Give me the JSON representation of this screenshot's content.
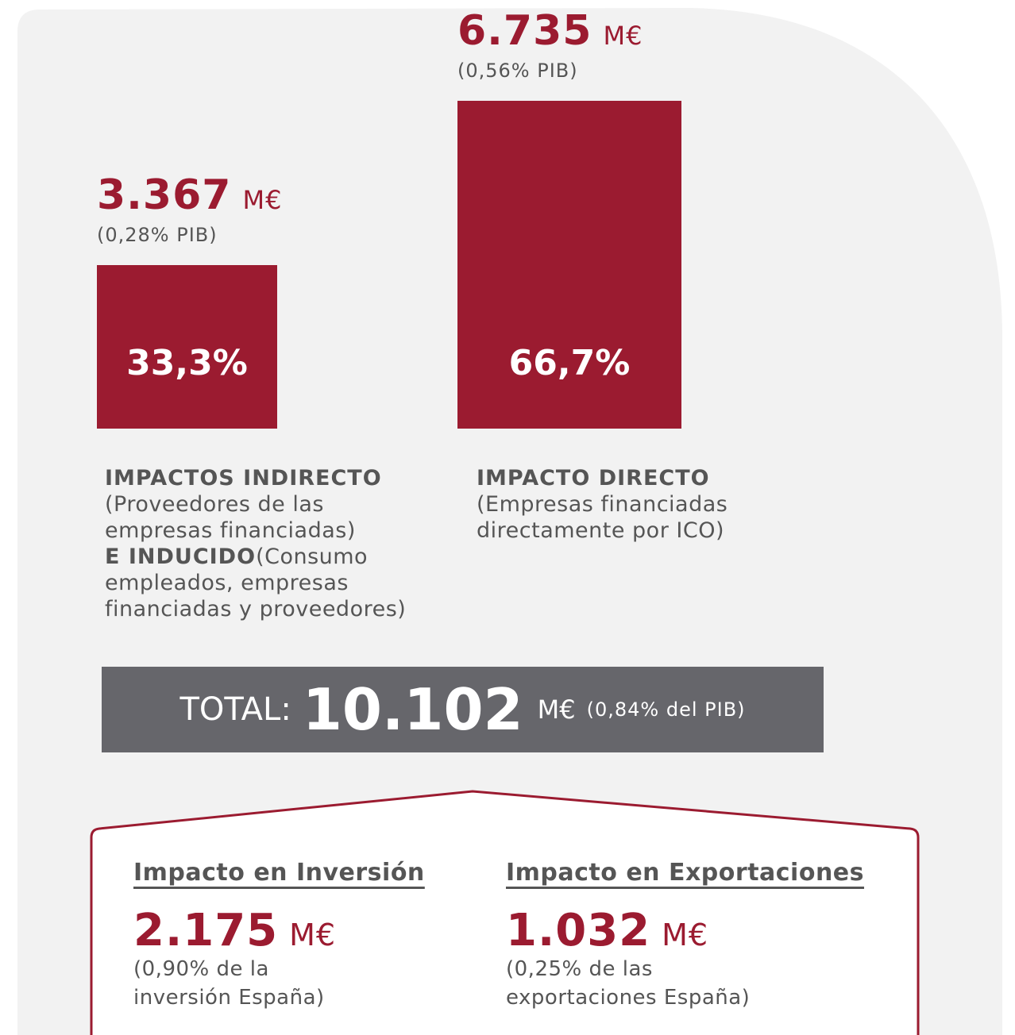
{
  "bars": [
    {
      "value": 3367,
      "value_label": "3.367",
      "unit": "M€",
      "pib": "(0,28% PIB)",
      "share": "33,3%",
      "label": [
        {
          "text": "IMPACTOS INDIRECTO",
          "bold": true
        },
        {
          "text": "(Proveedores de las empresas financiadas)",
          "bold": false
        },
        {
          "text": "E INDUCIDO",
          "bold": true
        },
        {
          "text": "(Consumo empleados, empresas financiadas y proveedores)",
          "bold": false
        }
      ]
    },
    {
      "value": 6735,
      "value_label": "6.735",
      "unit": "M€",
      "pib": "(0,56% PIB)",
      "share": "66,7%",
      "label": [
        {
          "text": "IMPACTO DIRECTO",
          "bold": true
        },
        {
          "text": "(Empresas financiadas directamente por ICO)",
          "bold": false
        }
      ]
    }
  ],
  "total": {
    "prefix": "TOTAL:",
    "value": "10.102",
    "unit": "M€",
    "note": "(0,84% del PIB)"
  },
  "impacts": [
    {
      "title": "Impacto en Inversión",
      "value": "2.175",
      "unit": "M€",
      "note": "(0,90% de la inversión España)"
    },
    {
      "title": "Impacto en Exportaciones",
      "value": "1.032",
      "unit": "M€",
      "note": "(0,25% de las exportaciones España)"
    }
  ]
}
